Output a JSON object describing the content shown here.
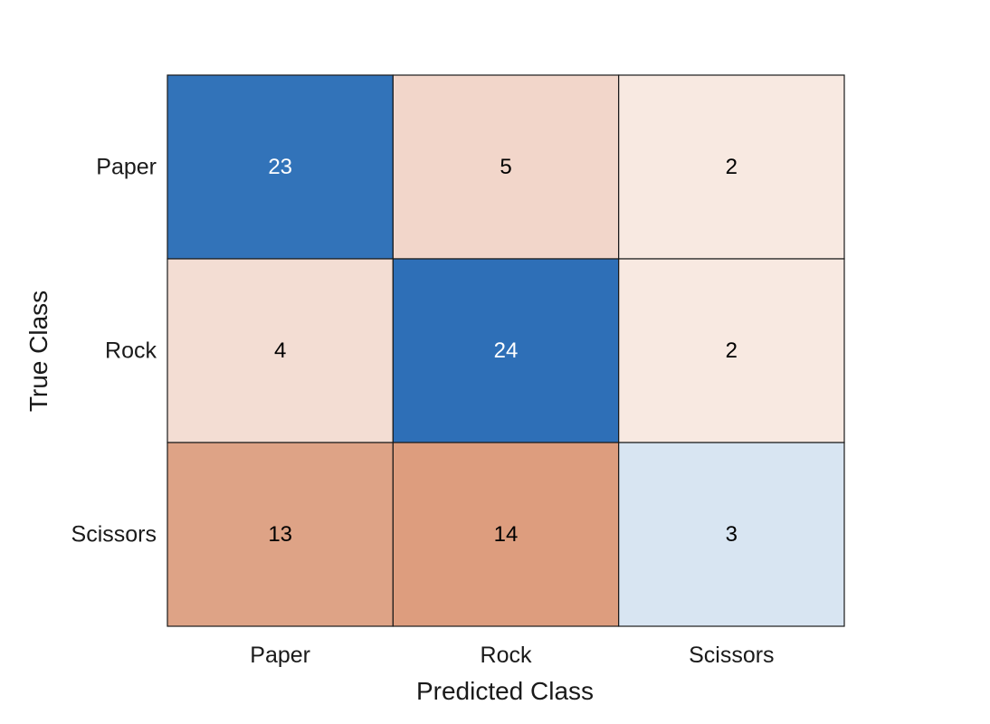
{
  "chart_data": {
    "type": "heatmap",
    "title": "",
    "xlabel": "Predicted Class",
    "ylabel": "True Class",
    "x_categories": [
      "Paper",
      "Rock",
      "Scissors"
    ],
    "y_categories": [
      "Paper",
      "Rock",
      "Scissors"
    ],
    "values": [
      [
        23,
        5,
        2
      ],
      [
        4,
        24,
        2
      ],
      [
        13,
        14,
        3
      ]
    ],
    "grid": true,
    "colors": {
      "cells": [
        [
          "#3273b9",
          "#f2d6ca",
          "#f8e9e1"
        ],
        [
          "#f3ddd3",
          "#2e6fb7",
          "#f8e9e1"
        ],
        [
          "#dea386",
          "#dd9d7e",
          "#d8e5f2"
        ]
      ],
      "text_dark": "#000000",
      "text_light": "#ffffff",
      "border": "#1a1a1a"
    }
  }
}
